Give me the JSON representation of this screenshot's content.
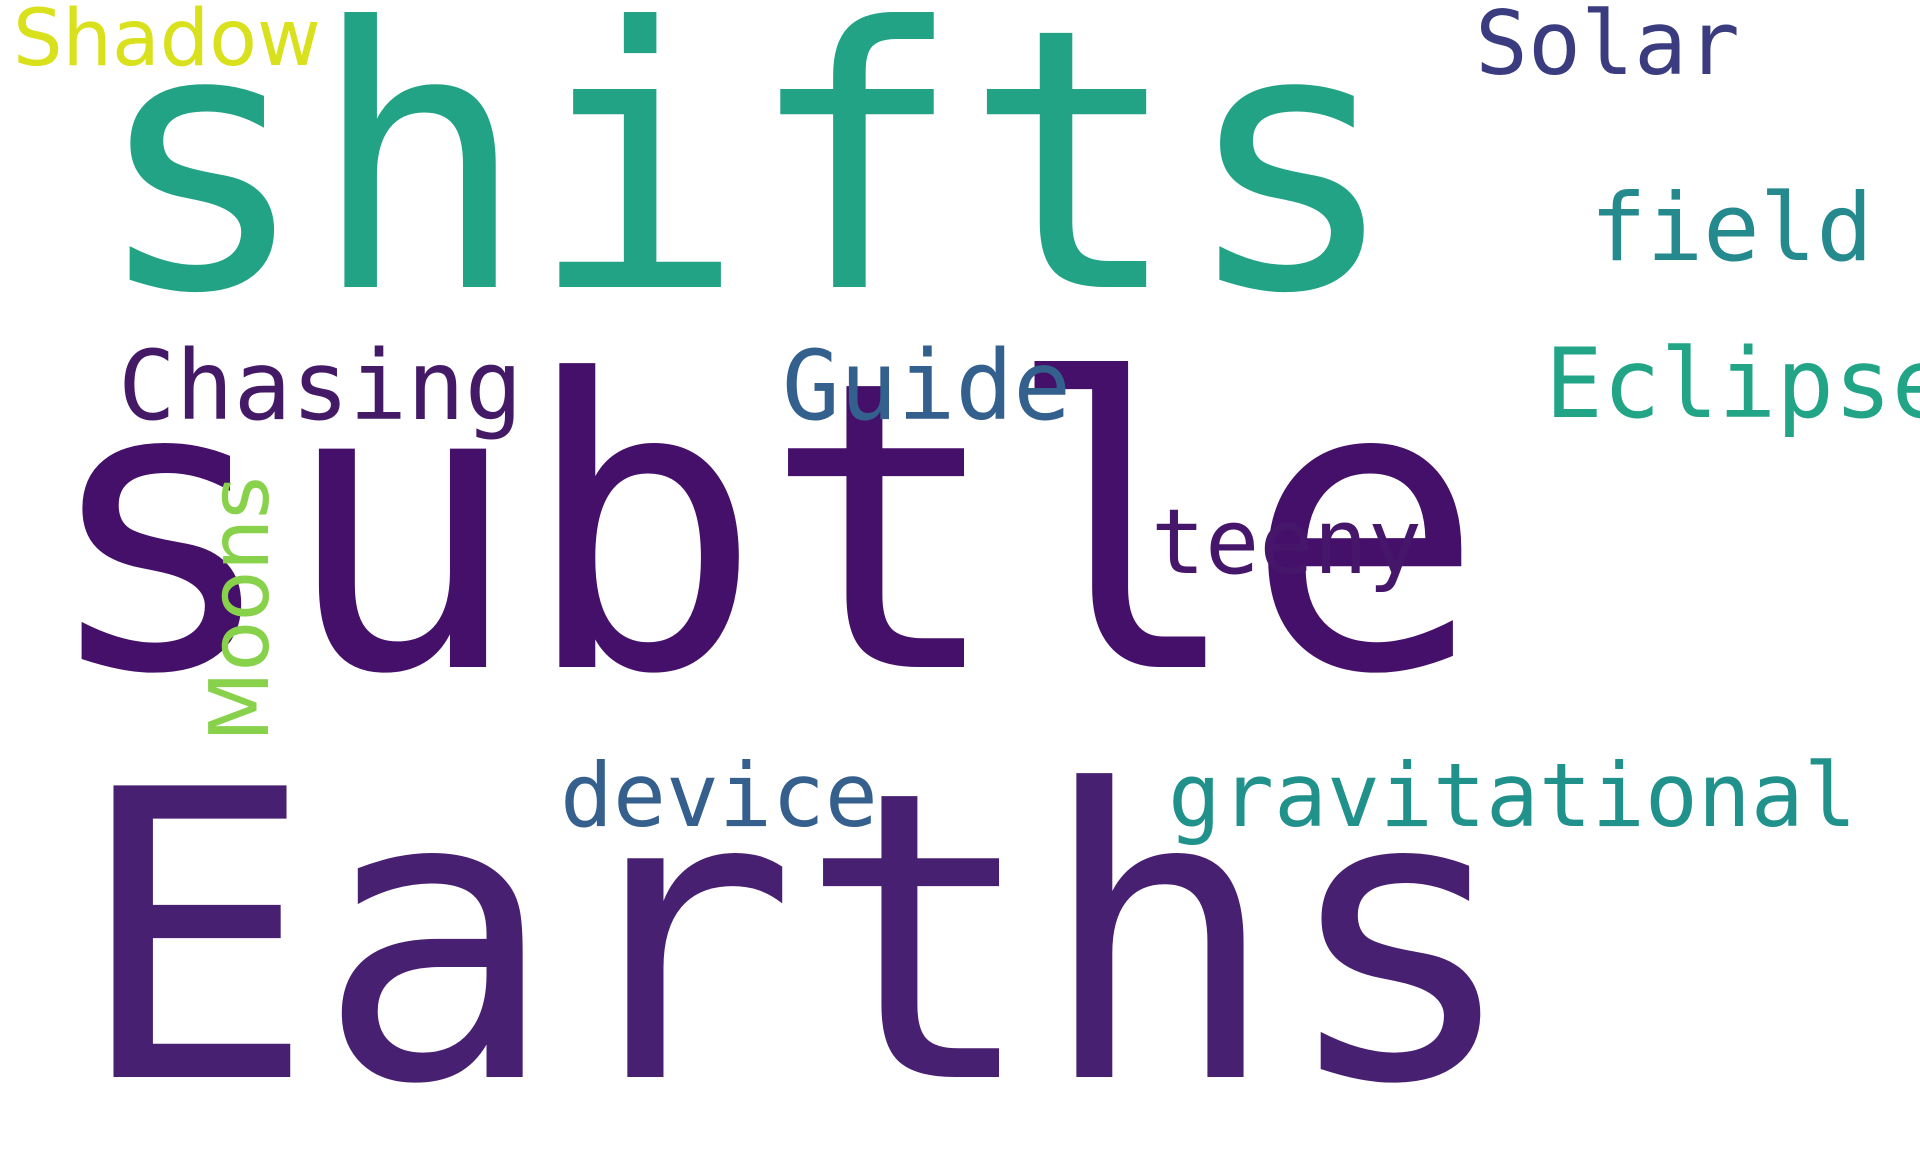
{
  "word_cloud": {
    "background": "#ffffff",
    "words": [
      {
        "id": "subtle",
        "text": "subtle",
        "color": "#45106a"
      },
      {
        "id": "earths",
        "text": "Earths",
        "color": "#482071"
      },
      {
        "id": "shifts",
        "text": "shifts",
        "color": "#22a385"
      },
      {
        "id": "shadow",
        "text": "Shadow",
        "color": "#d9e01c"
      },
      {
        "id": "solar",
        "text": "Solar",
        "color": "#3b3c80"
      },
      {
        "id": "field",
        "text": "field",
        "color": "#248a8d"
      },
      {
        "id": "chasing",
        "text": "Chasing",
        "color": "#441a67"
      },
      {
        "id": "guide",
        "text": "Guide",
        "color": "#34608d"
      },
      {
        "id": "eclipse",
        "text": "Eclipse",
        "color": "#22a587"
      },
      {
        "id": "teeny",
        "text": "teeny",
        "color": "#46166b"
      },
      {
        "id": "device",
        "text": "device",
        "color": "#355f8d"
      },
      {
        "id": "gravitational",
        "text": "gravitational",
        "color": "#21918b"
      },
      {
        "id": "moons",
        "text": "Moons",
        "color": "#88d24b"
      }
    ]
  }
}
